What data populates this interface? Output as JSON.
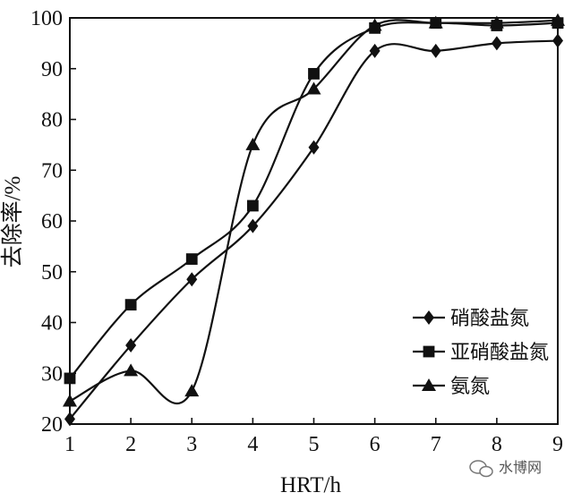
{
  "chart_data": {
    "type": "line",
    "xlabel": "HRT/h",
    "ylabel": "去除率/%",
    "x": [
      1,
      2,
      3,
      4,
      5,
      6,
      7,
      8,
      9
    ],
    "xlim": [
      1,
      9
    ],
    "ylim": [
      20,
      100
    ],
    "xticks": [
      1,
      2,
      3,
      4,
      5,
      6,
      7,
      8,
      9
    ],
    "yticks": [
      20,
      30,
      40,
      50,
      60,
      70,
      80,
      90,
      100
    ],
    "grid": false,
    "legend_position": "right-middle",
    "series": [
      {
        "name": "硝酸盐氮",
        "marker": "diamond",
        "values": [
          21,
          35.5,
          48.5,
          59,
          74.5,
          93.5,
          93.5,
          95,
          95.5
        ]
      },
      {
        "name": "亚硝酸盐氮",
        "marker": "square",
        "values": [
          29,
          43.5,
          52.5,
          63,
          89,
          98,
          99,
          98.5,
          99
        ]
      },
      {
        "name": "氨氮",
        "marker": "triangle",
        "values": [
          24.5,
          30.5,
          26.5,
          75,
          86,
          98.5,
          99,
          99,
          99.5
        ]
      }
    ]
  },
  "watermark": {
    "text": "水博网",
    "icon": "wechat-icon"
  }
}
